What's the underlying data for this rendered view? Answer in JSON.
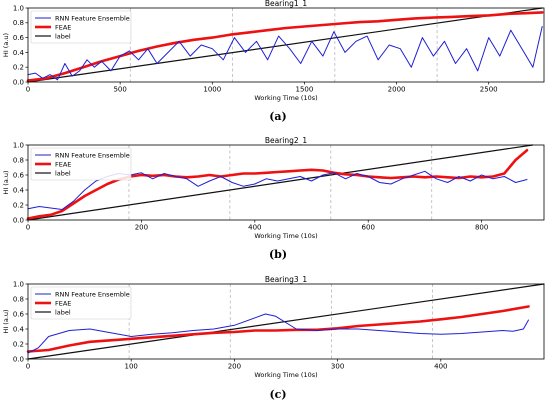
{
  "chart_data": [
    {
      "type": "line",
      "caption": "(a)",
      "title": "Bearing1_1",
      "xlabel": "Working Time (10s)",
      "ylabel": "HI (a.u)",
      "xlim": [
        0,
        2800
      ],
      "ylim": [
        0,
        1.0
      ],
      "xticks": [
        0,
        500,
        1000,
        1500,
        2000,
        2500
      ],
      "yticks": [
        0.0,
        0.2,
        0.4,
        0.6,
        0.8,
        1.0
      ],
      "xtick_labels": [
        "0",
        "500",
        "1000",
        "1500",
        "2000",
        "2500"
      ],
      "ytick_labels": [
        "0.0",
        "0.2",
        "0.4",
        "0.6",
        "0.8",
        "1.0"
      ],
      "vlines": [
        555,
        1110,
        1665,
        2220
      ],
      "legend": "top-left",
      "grid": false,
      "series": [
        {
          "name": "RNN Feature Ensemble",
          "color": "#1f1fd6",
          "width": 1.0,
          "x": [
            0,
            40,
            80,
            120,
            160,
            200,
            240,
            280,
            320,
            360,
            400,
            450,
            500,
            550,
            600,
            650,
            700,
            760,
            820,
            880,
            940,
            1000,
            1060,
            1120,
            1180,
            1240,
            1300,
            1360,
            1420,
            1480,
            1540,
            1600,
            1660,
            1720,
            1780,
            1840,
            1900,
            1960,
            2020,
            2080,
            2140,
            2200,
            2260,
            2320,
            2380,
            2440,
            2500,
            2560,
            2620,
            2680,
            2740,
            2790
          ],
          "y": [
            0.1,
            0.12,
            0.05,
            0.1,
            0.03,
            0.25,
            0.08,
            0.15,
            0.3,
            0.2,
            0.28,
            0.15,
            0.35,
            0.42,
            0.3,
            0.45,
            0.25,
            0.4,
            0.55,
            0.35,
            0.5,
            0.45,
            0.3,
            0.6,
            0.4,
            0.55,
            0.3,
            0.62,
            0.45,
            0.25,
            0.55,
            0.35,
            0.68,
            0.4,
            0.55,
            0.62,
            0.3,
            0.5,
            0.45,
            0.2,
            0.6,
            0.35,
            0.55,
            0.25,
            0.45,
            0.15,
            0.6,
            0.35,
            0.7,
            0.45,
            0.2,
            0.75
          ]
        },
        {
          "name": "FEAE",
          "color": "#ee1111",
          "width": 2.6,
          "x": [
            0,
            100,
            200,
            300,
            400,
            500,
            600,
            700,
            800,
            900,
            1000,
            1100,
            1200,
            1300,
            1400,
            1500,
            1600,
            1700,
            1800,
            1900,
            2000,
            2100,
            2200,
            2300,
            2400,
            2500,
            2600,
            2700,
            2790
          ],
          "y": [
            0.02,
            0.05,
            0.12,
            0.2,
            0.28,
            0.35,
            0.42,
            0.48,
            0.53,
            0.57,
            0.6,
            0.64,
            0.67,
            0.7,
            0.73,
            0.75,
            0.77,
            0.79,
            0.81,
            0.82,
            0.84,
            0.86,
            0.87,
            0.88,
            0.89,
            0.9,
            0.92,
            0.93,
            0.94
          ]
        },
        {
          "name": "label",
          "color": "#111111",
          "width": 1.2,
          "x": [
            0,
            2790
          ],
          "y": [
            0.0,
            1.0
          ]
        }
      ]
    },
    {
      "type": "line",
      "caption": "(b)",
      "title": "Bearing2_1",
      "xlabel": "Working Time (10s)",
      "ylabel": "HI (a.u)",
      "xlim": [
        0,
        910
      ],
      "ylim": [
        0,
        1.0
      ],
      "xticks": [
        0,
        200,
        400,
        600,
        800
      ],
      "yticks": [
        0.0,
        0.2,
        0.4,
        0.6,
        0.8,
        1.0
      ],
      "xtick_labels": [
        "0",
        "200",
        "400",
        "600",
        "800"
      ],
      "ytick_labels": [
        "0.0",
        "0.2",
        "0.4",
        "0.6",
        "0.8",
        "1.0"
      ],
      "vlines": [
        178,
        356,
        534,
        712
      ],
      "legend": "top-left",
      "grid": false,
      "series": [
        {
          "name": "RNN Feature Ensemble",
          "color": "#1f1fd6",
          "width": 1.0,
          "x": [
            0,
            20,
            40,
            60,
            80,
            100,
            120,
            140,
            160,
            180,
            200,
            220,
            240,
            260,
            280,
            300,
            320,
            340,
            360,
            380,
            400,
            420,
            440,
            460,
            480,
            500,
            520,
            540,
            560,
            580,
            600,
            620,
            640,
            660,
            680,
            700,
            720,
            740,
            760,
            780,
            800,
            820,
            840,
            860,
            880
          ],
          "y": [
            0.15,
            0.18,
            0.16,
            0.14,
            0.25,
            0.4,
            0.52,
            0.58,
            0.62,
            0.6,
            0.63,
            0.55,
            0.62,
            0.58,
            0.55,
            0.45,
            0.52,
            0.58,
            0.5,
            0.45,
            0.48,
            0.55,
            0.52,
            0.55,
            0.58,
            0.52,
            0.6,
            0.63,
            0.55,
            0.62,
            0.58,
            0.5,
            0.48,
            0.55,
            0.6,
            0.65,
            0.55,
            0.5,
            0.58,
            0.52,
            0.6,
            0.55,
            0.58,
            0.5,
            0.54
          ]
        },
        {
          "name": "FEAE",
          "color": "#ee1111",
          "width": 2.6,
          "x": [
            0,
            20,
            40,
            60,
            80,
            100,
            120,
            140,
            160,
            180,
            200,
            220,
            240,
            260,
            280,
            300,
            320,
            340,
            360,
            380,
            400,
            420,
            440,
            460,
            480,
            500,
            520,
            540,
            560,
            580,
            600,
            620,
            640,
            660,
            680,
            700,
            720,
            740,
            760,
            780,
            800,
            820,
            840,
            860,
            880
          ],
          "y": [
            0.02,
            0.05,
            0.07,
            0.12,
            0.22,
            0.32,
            0.4,
            0.48,
            0.54,
            0.58,
            0.6,
            0.59,
            0.6,
            0.58,
            0.57,
            0.58,
            0.6,
            0.58,
            0.6,
            0.62,
            0.62,
            0.63,
            0.64,
            0.65,
            0.66,
            0.67,
            0.66,
            0.63,
            0.61,
            0.6,
            0.58,
            0.57,
            0.56,
            0.57,
            0.58,
            0.57,
            0.58,
            0.57,
            0.56,
            0.58,
            0.57,
            0.58,
            0.62,
            0.8,
            0.93
          ]
        },
        {
          "name": "label",
          "color": "#111111",
          "width": 1.2,
          "x": [
            0,
            890
          ],
          "y": [
            0.0,
            1.0
          ]
        }
      ]
    },
    {
      "type": "line",
      "caption": "(c)",
      "title": "Bearing3_1",
      "xlabel": "Working Time (10s)",
      "ylabel": "HI (a.u)",
      "xlim": [
        0,
        500
      ],
      "ylim": [
        0,
        1.0
      ],
      "xticks": [
        0,
        100,
        200,
        300,
        400
      ],
      "yticks": [
        0.0,
        0.2,
        0.4,
        0.6,
        0.8,
        1.0
      ],
      "xtick_labels": [
        "0",
        "100",
        "200",
        "300",
        "400"
      ],
      "ytick_labels": [
        "0.0",
        "0.2",
        "0.4",
        "0.6",
        "0.8",
        "1.0"
      ],
      "vlines": [
        98,
        196,
        294,
        392
      ],
      "legend": "top-left",
      "grid": false,
      "series": [
        {
          "name": "RNN Feature Ensemble",
          "color": "#1f1fd6",
          "width": 1.0,
          "x": [
            0,
            10,
            20,
            40,
            60,
            80,
            100,
            120,
            140,
            160,
            180,
            200,
            220,
            230,
            240,
            260,
            280,
            300,
            320,
            340,
            360,
            380,
            400,
            420,
            440,
            460,
            470,
            480,
            485
          ],
          "y": [
            0.08,
            0.15,
            0.3,
            0.38,
            0.4,
            0.35,
            0.3,
            0.33,
            0.35,
            0.38,
            0.4,
            0.45,
            0.55,
            0.6,
            0.57,
            0.4,
            0.38,
            0.4,
            0.4,
            0.38,
            0.36,
            0.34,
            0.33,
            0.34,
            0.36,
            0.38,
            0.37,
            0.4,
            0.52
          ]
        },
        {
          "name": "FEAE",
          "color": "#ee1111",
          "width": 2.6,
          "x": [
            0,
            20,
            40,
            60,
            80,
            100,
            120,
            140,
            160,
            180,
            200,
            220,
            240,
            260,
            280,
            300,
            320,
            340,
            360,
            380,
            400,
            420,
            440,
            460,
            485
          ],
          "y": [
            0.1,
            0.12,
            0.18,
            0.23,
            0.25,
            0.27,
            0.29,
            0.31,
            0.33,
            0.35,
            0.36,
            0.38,
            0.38,
            0.39,
            0.39,
            0.41,
            0.44,
            0.46,
            0.48,
            0.5,
            0.53,
            0.56,
            0.6,
            0.64,
            0.7
          ]
        },
        {
          "name": "label",
          "color": "#111111",
          "width": 1.2,
          "x": [
            0,
            500
          ],
          "y": [
            0.0,
            1.0
          ]
        }
      ]
    }
  ]
}
